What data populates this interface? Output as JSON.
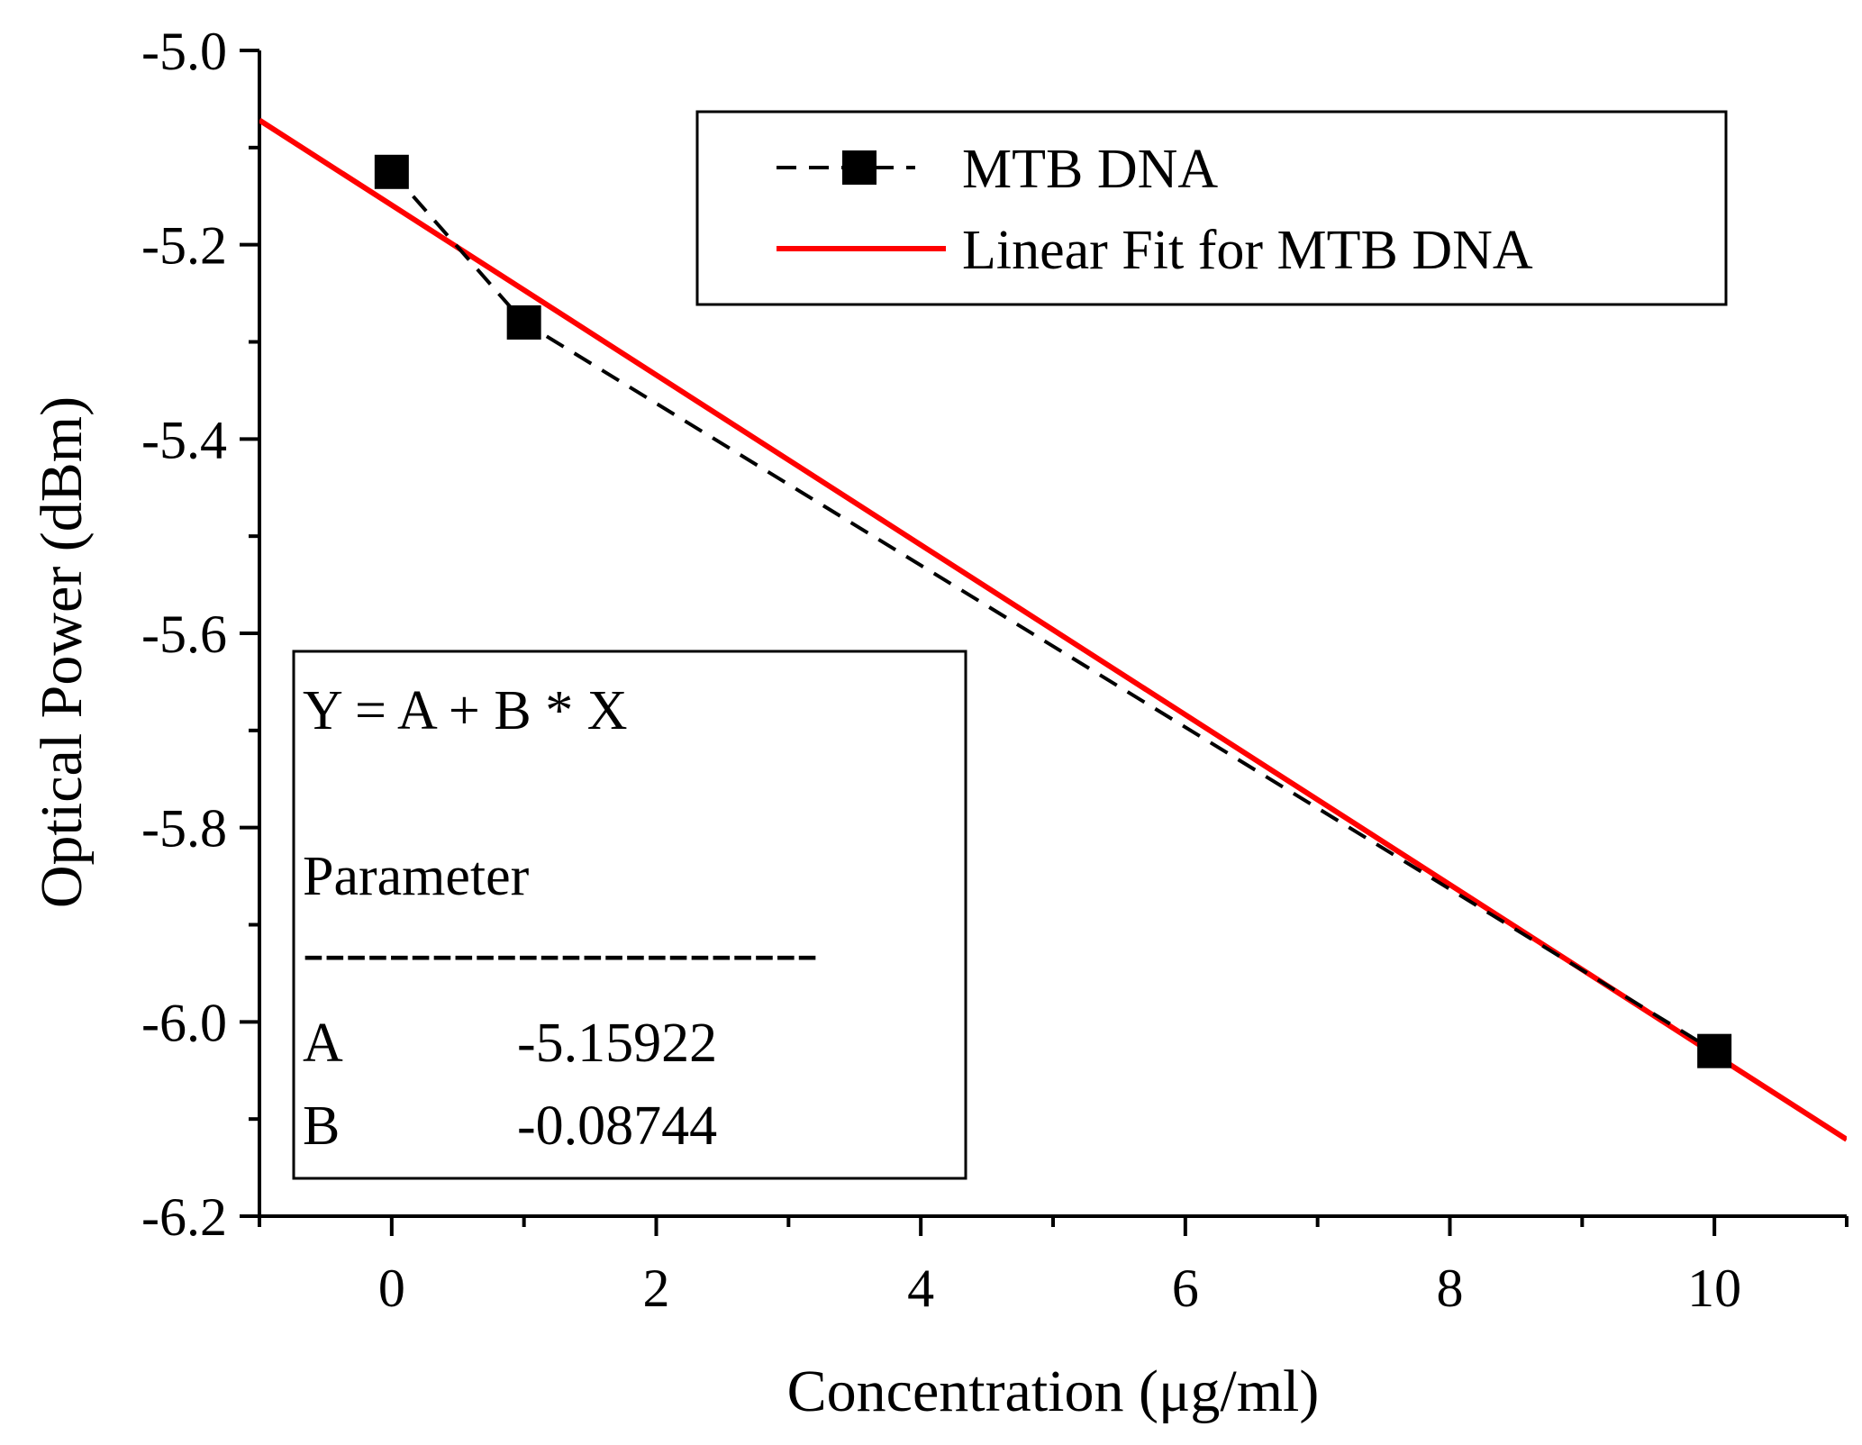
{
  "chart_data": {
    "type": "scatter",
    "xlabel": "Concentration (μg/ml)",
    "ylabel": "Optical Power (dBm)",
    "xlim": [
      -1,
      11
    ],
    "ylim": [
      -6.2,
      -5.0
    ],
    "x_ticks": [
      0,
      2,
      4,
      6,
      8,
      10
    ],
    "x_tick_labels": [
      "0",
      "2",
      "4",
      "6",
      "8",
      "10"
    ],
    "y_ticks": [
      -5.0,
      -5.2,
      -5.4,
      -5.6,
      -5.8,
      -6.0,
      -6.2
    ],
    "y_tick_labels": [
      "-5.0",
      "-5.2",
      "-5.4",
      "-5.6",
      "-5.8",
      "-6.0",
      "-6.2"
    ],
    "series": [
      {
        "name": "MTB DNA",
        "style": "dashed-line-square-markers",
        "color": "#000000",
        "x": [
          0,
          1,
          10
        ],
        "y": [
          -5.125,
          -5.28,
          -6.03
        ]
      },
      {
        "name": "Linear Fit for MTB DNA",
        "style": "solid-line",
        "color": "#ff0000",
        "intercept": -5.15922,
        "slope": -0.08744
      }
    ],
    "legend": {
      "position": "top-right",
      "entries": [
        "MTB DNA",
        "Linear Fit for MTB DNA"
      ]
    },
    "fit_box": {
      "position": "bottom-left",
      "equation": "Y = A + B * X",
      "header": "Parameter",
      "separator": "------------------------",
      "params": [
        {
          "name": "A",
          "value": "-5.15922"
        },
        {
          "name": "B",
          "value": "-0.08744"
        }
      ]
    }
  }
}
